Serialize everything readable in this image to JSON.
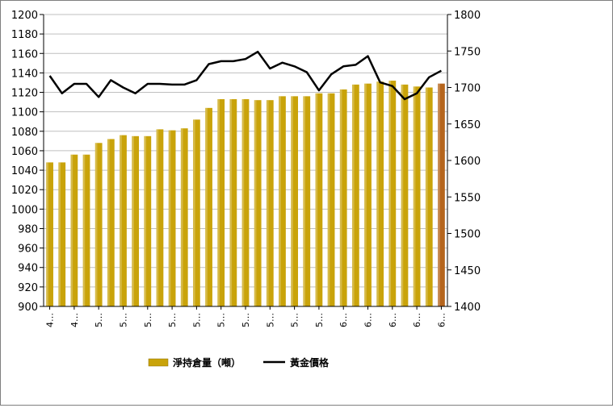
{
  "chart_data": {
    "type": "bar",
    "title": "",
    "x_tick_labels": [
      "4…",
      "4…",
      "5…",
      "5…",
      "5…",
      "5…",
      "5…",
      "5…",
      "5…",
      "5…",
      "5…",
      "5…",
      "6…",
      "6…",
      "6…",
      "6…",
      "6…"
    ],
    "bar_colors": {
      "default": "#c9a30a",
      "last": "#b5651d"
    },
    "line_color": "#000000",
    "left_axis": {
      "min": 900,
      "max": 1200,
      "step": 20,
      "ticks": [
        "900",
        "920",
        "940",
        "960",
        "980",
        "1000",
        "1020",
        "1040",
        "1060",
        "1080",
        "1100",
        "1120",
        "1140",
        "1160",
        "1180",
        "1200"
      ]
    },
    "right_axis": {
      "min": 1400,
      "max": 1800,
      "step": 50,
      "ticks": [
        "1400",
        "1450",
        "1500",
        "1550",
        "1600",
        "1650",
        "1700",
        "1750",
        "1800"
      ]
    },
    "grid": true,
    "legend_position": "bottom",
    "series": [
      {
        "name": "淨持倉量（噸）",
        "type": "bar",
        "axis": "left",
        "values": [
          1048,
          1048,
          1056,
          1056,
          1068,
          1072,
          1076,
          1075,
          1075,
          1082,
          1081,
          1083,
          1092,
          1104,
          1113,
          1113,
          1113,
          1112,
          1112,
          1116,
          1116,
          1116,
          1119,
          1119,
          1123,
          1128,
          1129,
          1131,
          1132,
          1128,
          1126,
          1125,
          1129
        ]
      },
      {
        "name": "黃金價格",
        "type": "line",
        "axis": "right",
        "values": [
          1716,
          1692,
          1705,
          1705,
          1687,
          1710,
          1700,
          1692,
          1705,
          1705,
          1704,
          1704,
          1710,
          1732,
          1736,
          1736,
          1739,
          1749,
          1726,
          1734,
          1729,
          1721,
          1696,
          1718,
          1729,
          1731,
          1743,
          1707,
          1702,
          1684,
          1692,
          1714,
          1723
        ]
      }
    ]
  }
}
